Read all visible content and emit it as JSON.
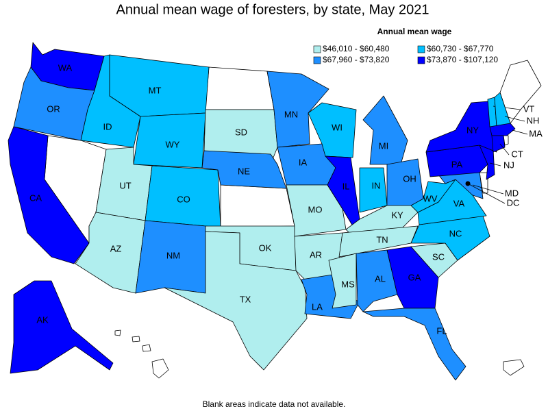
{
  "title": "Annual mean wage of foresters, by state, May 2021",
  "legend": {
    "title": "Annual mean wage",
    "items": [
      {
        "label": "$46,010 - $60,480",
        "color": "#b0eeee"
      },
      {
        "label": "$60,730 - $67,770",
        "color": "#00bfff"
      },
      {
        "label": "$67,960 - $73,820",
        "color": "#1e8fff"
      },
      {
        "label": "$73,870 - $107,120",
        "color": "#0000ff"
      }
    ]
  },
  "states": [
    {
      "abbr": "WA",
      "bin": 3
    },
    {
      "abbr": "OR",
      "bin": 2
    },
    {
      "abbr": "CA",
      "bin": 3
    },
    {
      "abbr": "ID",
      "bin": 1
    },
    {
      "abbr": "MT",
      "bin": 1
    },
    {
      "abbr": "WY",
      "bin": 1
    },
    {
      "abbr": "UT",
      "bin": 0
    },
    {
      "abbr": "AZ",
      "bin": 0
    },
    {
      "abbr": "CO",
      "bin": 1
    },
    {
      "abbr": "NM",
      "bin": 2
    },
    {
      "abbr": "SD",
      "bin": 0
    },
    {
      "abbr": "NE",
      "bin": 2
    },
    {
      "abbr": "OK",
      "bin": 0
    },
    {
      "abbr": "TX",
      "bin": 0
    },
    {
      "abbr": "MN",
      "bin": 2
    },
    {
      "abbr": "IA",
      "bin": 2
    },
    {
      "abbr": "MO",
      "bin": 0
    },
    {
      "abbr": "AR",
      "bin": 0
    },
    {
      "abbr": "LA",
      "bin": 2
    },
    {
      "abbr": "WI",
      "bin": 1
    },
    {
      "abbr": "IL",
      "bin": 3
    },
    {
      "abbr": "MI",
      "bin": 2
    },
    {
      "abbr": "IN",
      "bin": 1
    },
    {
      "abbr": "OH",
      "bin": 2
    },
    {
      "abbr": "KY",
      "bin": 0
    },
    {
      "abbr": "TN",
      "bin": 0
    },
    {
      "abbr": "MS",
      "bin": 0
    },
    {
      "abbr": "AL",
      "bin": 2
    },
    {
      "abbr": "GA",
      "bin": 3
    },
    {
      "abbr": "FL",
      "bin": 2
    },
    {
      "abbr": "SC",
      "bin": 0
    },
    {
      "abbr": "NC",
      "bin": 1
    },
    {
      "abbr": "VA",
      "bin": 1
    },
    {
      "abbr": "WV",
      "bin": 1
    },
    {
      "abbr": "MD",
      "bin": 2
    },
    {
      "abbr": "PA",
      "bin": 3
    },
    {
      "abbr": "NJ",
      "bin": 3
    },
    {
      "abbr": "NY",
      "bin": 3
    },
    {
      "abbr": "VT",
      "bin": 1
    },
    {
      "abbr": "NH",
      "bin": 1
    },
    {
      "abbr": "MA",
      "bin": 3
    },
    {
      "abbr": "CT",
      "bin": 3
    },
    {
      "abbr": "AK",
      "bin": 3
    },
    {
      "abbr": "DC"
    }
  ],
  "note": "Blank areas indicate data not available."
}
